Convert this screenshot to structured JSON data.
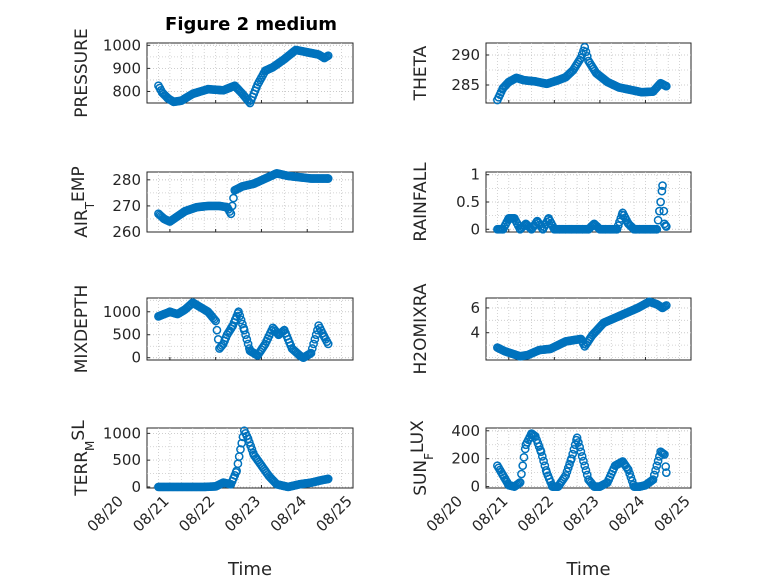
{
  "figure": {
    "title": "Figure 2 medium"
  },
  "chart_data": [
    {
      "type": "scatter",
      "id": "pressure",
      "ylabel": "PRESSURE",
      "ylabel_sub": "",
      "ylabel_after": "",
      "xlabel": "",
      "xlim": [
        "08/20 12:00",
        "08/25 00:00"
      ],
      "ylim": [
        750,
        1010
      ],
      "yticks": [
        800,
        900,
        1000
      ],
      "xticks": [],
      "grid": true,
      "x": [
        "08/20 18:00",
        "08/20 20:00",
        "08/20 23:00",
        "08/21 02:00",
        "08/21 06:00",
        "08/21 12:00",
        "08/21 20:00",
        "08/22 04:00",
        "08/22 10:00",
        "08/22 14:00",
        "08/22 18:00",
        "08/22 22:00",
        "08/23 02:00",
        "08/23 06:00",
        "08/23 12:00",
        "08/23 18:00",
        "08/24 00:00",
        "08/24 06:00",
        "08/24 09:00",
        "08/24 11:00"
      ],
      "y": [
        825,
        795,
        770,
        755,
        760,
        790,
        810,
        805,
        825,
        790,
        750,
        830,
        890,
        905,
        940,
        980,
        970,
        960,
        945,
        955
      ]
    },
    {
      "type": "scatter",
      "id": "theta",
      "ylabel": "THETA",
      "ylabel_sub": "",
      "ylabel_after": "",
      "xlabel": "",
      "xlim": [
        "08/20 12:00",
        "08/25 00:00"
      ],
      "ylim": [
        282,
        292
      ],
      "yticks": [
        285,
        290
      ],
      "xticks": [],
      "grid": true,
      "x": [
        "08/20 18:00",
        "08/20 21:00",
        "08/21 00:00",
        "08/21 04:00",
        "08/21 08:00",
        "08/21 14:00",
        "08/21 20:00",
        "08/22 02:00",
        "08/22 06:00",
        "08/22 10:00",
        "08/22 14:00",
        "08/22 16:00",
        "08/22 18:00",
        "08/22 22:00",
        "08/23 04:00",
        "08/23 10:00",
        "08/23 16:00",
        "08/23 22:00",
        "08/24 04:00",
        "08/24 08:00",
        "08/24 11:00"
      ],
      "y": [
        282.5,
        284.5,
        285.5,
        286.2,
        285.8,
        285.6,
        285.2,
        285.8,
        286.3,
        287.5,
        289.5,
        291.3,
        289.0,
        287.0,
        285.5,
        284.6,
        284.2,
        283.8,
        283.9,
        285.3,
        284.8
      ]
    },
    {
      "type": "scatter",
      "id": "air_temp",
      "ylabel": "AIR",
      "ylabel_sub": "T",
      "ylabel_after": "EMP",
      "xlabel": "",
      "xlim": [
        "08/20 12:00",
        "08/25 00:00"
      ],
      "ylim": [
        260,
        283
      ],
      "yticks": [
        260,
        270,
        280
      ],
      "xticks": [],
      "grid": true,
      "x": [
        "08/20 18:00",
        "08/20 21:00",
        "08/21 00:00",
        "08/21 04:00",
        "08/21 08:00",
        "08/21 14:00",
        "08/21 20:00",
        "08/22 02:00",
        "08/22 06:00",
        "08/22 08:00",
        "08/22 10:00",
        "08/22 14:00",
        "08/22 20:00",
        "08/23 02:00",
        "08/23 08:00",
        "08/23 14:00",
        "08/23 20:00",
        "08/24 02:00",
        "08/24 08:00",
        "08/24 11:00"
      ],
      "y": [
        267,
        265,
        264,
        266,
        268,
        269.5,
        270,
        270,
        269.5,
        267,
        276,
        277.5,
        278.5,
        280.5,
        282.5,
        281.5,
        281,
        280.5,
        280.5,
        280.5
      ]
    },
    {
      "type": "scatter",
      "id": "rainfall",
      "ylabel": "RAINFALL",
      "ylabel_sub": "",
      "ylabel_after": "",
      "xlabel": "",
      "xlim": [
        "08/20 12:00",
        "08/25 00:00"
      ],
      "ylim": [
        -0.05,
        1.05
      ],
      "yticks": [
        0,
        0.5,
        1
      ],
      "xticks": [],
      "grid": true,
      "x": [
        "08/20 18:00",
        "08/20 21:00",
        "08/21 00:00",
        "08/21 03:00",
        "08/21 06:00",
        "08/21 09:00",
        "08/21 12:00",
        "08/21 15:00",
        "08/21 18:00",
        "08/21 21:00",
        "08/22 00:00",
        "08/22 03:00",
        "08/22 06:00",
        "08/22 09:00",
        "08/22 12:00",
        "08/22 15:00",
        "08/22 18:00",
        "08/22 21:00",
        "08/23 00:00",
        "08/23 03:00",
        "08/23 06:00",
        "08/23 09:00",
        "08/23 12:00",
        "08/23 15:00",
        "08/23 18:00",
        "08/23 21:00",
        "08/24 00:00",
        "08/24 03:00",
        "08/24 06:00",
        "08/24 08:00",
        "08/24 09:00",
        "08/24 10:00",
        "08/24 11:00"
      ],
      "y": [
        0,
        0,
        0.2,
        0.2,
        0,
        0.1,
        0,
        0.15,
        0,
        0.2,
        0,
        0,
        0,
        0,
        0,
        0,
        0,
        0.1,
        0,
        0,
        0,
        0,
        0.3,
        0.1,
        0,
        0,
        0,
        0,
        0,
        0.5,
        0.8,
        0.1,
        0.05
      ]
    },
    {
      "type": "scatter",
      "id": "mixdepth",
      "ylabel": "MIXDEPTH",
      "ylabel_sub": "",
      "ylabel_after": "",
      "xlabel": "",
      "xlim": [
        "08/20 12:00",
        "08/25 00:00"
      ],
      "ylim": [
        -50,
        1300
      ],
      "yticks": [
        0,
        500,
        1000
      ],
      "xticks": [],
      "grid": true,
      "x": [
        "08/20 18:00",
        "08/20 21:00",
        "08/21 00:00",
        "08/21 04:00",
        "08/21 08:00",
        "08/21 12:00",
        "08/21 16:00",
        "08/21 20:00",
        "08/22 00:00",
        "08/22 02:00",
        "08/22 04:00",
        "08/22 06:00",
        "08/22 09:00",
        "08/22 12:00",
        "08/22 15:00",
        "08/22 18:00",
        "08/22 20:00",
        "08/22 22:00",
        "08/23 02:00",
        "08/23 06:00",
        "08/23 09:00",
        "08/23 12:00",
        "08/23 16:00",
        "08/23 20:00",
        "08/23 22:00",
        "08/24 02:00",
        "08/24 06:00",
        "08/24 09:00",
        "08/24 11:00"
      ],
      "y": [
        900,
        950,
        1000,
        950,
        1050,
        1200,
        1100,
        1000,
        800,
        200,
        300,
        500,
        700,
        1000,
        600,
        150,
        100,
        50,
        300,
        650,
        500,
        600,
        200,
        50,
        0,
        100,
        700,
        450,
        300
      ]
    },
    {
      "type": "scatter",
      "id": "h2omixra",
      "ylabel": "H2OMIXRA",
      "ylabel_sub": "",
      "ylabel_after": "",
      "xlabel": "",
      "xlim": [
        "08/20 12:00",
        "08/25 00:00"
      ],
      "ylim": [
        1.8,
        6.8
      ],
      "yticks": [
        4,
        6
      ],
      "xticks": [],
      "grid": true,
      "x": [
        "08/20 18:00",
        "08/20 22:00",
        "08/21 02:00",
        "08/21 06:00",
        "08/21 10:00",
        "08/21 16:00",
        "08/21 22:00",
        "08/22 02:00",
        "08/22 06:00",
        "08/22 10:00",
        "08/22 14:00",
        "08/22 16:00",
        "08/22 20:00",
        "08/23 02:00",
        "08/23 08:00",
        "08/23 14:00",
        "08/23 20:00",
        "08/24 02:00",
        "08/24 06:00",
        "08/24 09:00",
        "08/24 11:00"
      ],
      "y": [
        2.8,
        2.5,
        2.3,
        2.1,
        2.2,
        2.6,
        2.7,
        3.0,
        3.3,
        3.4,
        3.5,
        2.9,
        3.8,
        4.8,
        5.2,
        5.6,
        6.0,
        6.5,
        6.3,
        6.0,
        6.2
      ]
    },
    {
      "type": "scatter",
      "id": "terr_msl",
      "ylabel": "TERR",
      "ylabel_sub": "M",
      "ylabel_after": "SL",
      "xlabel": "Time",
      "xlim": [
        "08/20 12:00",
        "08/25 00:00"
      ],
      "ylim": [
        -20,
        1100
      ],
      "yticks": [
        0,
        500,
        1000
      ],
      "xticks": [
        "08/20",
        "08/21",
        "08/22",
        "08/23",
        "08/24",
        "08/25"
      ],
      "grid": true,
      "x": [
        "08/20 18:00",
        "08/21 00:00",
        "08/21 06:00",
        "08/21 12:00",
        "08/21 18:00",
        "08/22 00:00",
        "08/22 04:00",
        "08/22 08:00",
        "08/22 11:00",
        "08/22 13:00",
        "08/22 15:00",
        "08/22 17:00",
        "08/22 20:00",
        "08/23 00:00",
        "08/23 04:00",
        "08/23 08:00",
        "08/23 14:00",
        "08/23 20:00",
        "08/24 02:00",
        "08/24 08:00",
        "08/24 11:00"
      ],
      "y": [
        0,
        0,
        0,
        0,
        0,
        10,
        80,
        50,
        300,
        700,
        1050,
        900,
        600,
        400,
        200,
        50,
        0,
        50,
        80,
        130,
        150
      ]
    },
    {
      "type": "scatter",
      "id": "sun_flux",
      "ylabel": "SUN",
      "ylabel_sub": "F",
      "ylabel_after": "LUX",
      "xlabel": "Time",
      "xlim": [
        "08/20 12:00",
        "08/25 00:00"
      ],
      "ylim": [
        -10,
        420
      ],
      "yticks": [
        0,
        200,
        400
      ],
      "xticks": [
        "08/20",
        "08/21",
        "08/22",
        "08/23",
        "08/24",
        "08/25"
      ],
      "grid": true,
      "x": [
        "08/20 18:00",
        "08/20 21:00",
        "08/21 00:00",
        "08/21 03:00",
        "08/21 06:00",
        "08/21 09:00",
        "08/21 12:00",
        "08/21 14:00",
        "08/21 17:00",
        "08/21 20:00",
        "08/21 23:00",
        "08/22 02:00",
        "08/22 06:00",
        "08/22 09:00",
        "08/22 12:00",
        "08/22 14:00",
        "08/22 18:00",
        "08/22 21:00",
        "08/23 00:00",
        "08/23 04:00",
        "08/23 08:00",
        "08/23 12:00",
        "08/23 15:00",
        "08/23 18:00",
        "08/23 21:00",
        "08/24 00:00",
        "08/24 04:00",
        "08/24 08:00",
        "08/24 10:00",
        "08/24 11:00"
      ],
      "y": [
        150,
        80,
        10,
        0,
        30,
        300,
        380,
        360,
        250,
        100,
        0,
        0,
        80,
        200,
        350,
        250,
        50,
        0,
        0,
        30,
        150,
        180,
        120,
        0,
        0,
        10,
        50,
        250,
        230,
        100
      ]
    }
  ]
}
